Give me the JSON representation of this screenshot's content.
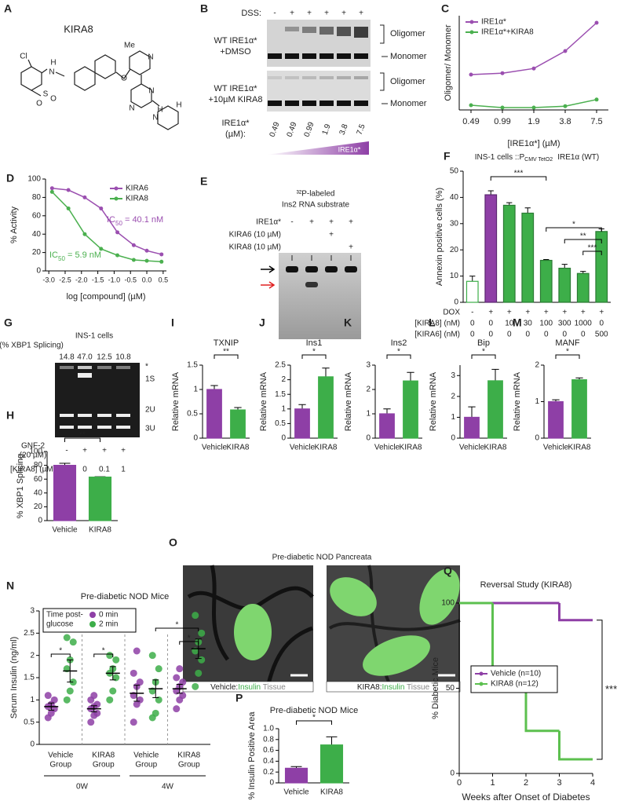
{
  "panel_a": {
    "label": "A",
    "title": "KIRA8",
    "atoms": [
      "Cl",
      "H",
      "N",
      "S",
      "O",
      "O",
      "Me",
      "O",
      "N",
      "N",
      "N",
      "H",
      "N",
      "H"
    ]
  },
  "panel_b": {
    "label": "B",
    "dss_label": "DSS:",
    "dss": [
      "-",
      "+",
      "+",
      "+",
      "+",
      "+"
    ],
    "top_condition": [
      "WT IRE1α*",
      "+DMSO"
    ],
    "bottom_condition": [
      "WT IRE1α*",
      "+10µM KIRA8"
    ],
    "oligomer": "Oligomer",
    "monomer": "Monomer",
    "conc_label": [
      "IRE1α*",
      "(µM):"
    ],
    "concentrations": [
      "0.49",
      "0.49",
      "0.99",
      "1.9",
      "3.8",
      "7.5"
    ],
    "gradient_label": "IRE1α*"
  },
  "panel_e": {
    "label": "E",
    "title": [
      "³²P-labeled",
      "Ins2 RNA substrate"
    ],
    "rows": [
      {
        "label": "IRE1α*",
        "signs": [
          "-",
          "+",
          "+",
          "+"
        ]
      },
      {
        "label": "KIRA6 (10 µM)",
        "signs": [
          null,
          null,
          "+",
          null
        ]
      },
      {
        "label": "KIRA8 (10 µM)",
        "signs": [
          null,
          null,
          null,
          "+"
        ]
      }
    ]
  },
  "panel_g": {
    "label": "G",
    "splicing_label": "(% XBP1 Splicing)",
    "cell_label": "INS-1 cells",
    "splicing": [
      "14.8",
      "47.0",
      "12.5",
      "10.8"
    ],
    "bands": [
      "*",
      "1S",
      "2U",
      "3U"
    ],
    "rows": [
      {
        "label": [
          "GNF-2",
          "(20 µM)"
        ],
        "values": [
          "-",
          "+",
          "+",
          "+"
        ]
      },
      {
        "label": [
          "[KIRA8] (µM)"
        ],
        "values": [
          "0",
          "0",
          "0.1",
          "1"
        ]
      }
    ]
  },
  "panel_o": {
    "label": "O",
    "title": "Pre-diabetic NOD Pancreata",
    "captions": [
      {
        "group": "Vehicle:",
        "stain": "Insulin",
        "tissue": "Tissue"
      },
      {
        "group": "KIRA8:",
        "stain": "Insulin",
        "tissue": "Tissue"
      }
    ]
  },
  "chart_data": [
    {
      "panel": "C",
      "type": "line",
      "categories": [
        "0.49",
        "0.99",
        "1.9",
        "3.8",
        "7.5"
      ],
      "series": [
        {
          "name": "IRE1α*",
          "color": "#9b4fb0",
          "values": [
            0.75,
            0.78,
            0.88,
            1.25,
            1.85
          ]
        },
        {
          "name": "IRE1α*+KIRA8",
          "color": "#4bb04f",
          "values": [
            0.1,
            0.05,
            0.05,
            0.08,
            0.22
          ]
        }
      ],
      "ylim": [
        0,
        2
      ],
      "y_label": "Oligomer/ Monomer",
      "x_label": "[IRE1α*] (µM)",
      "legend": "upper left"
    },
    {
      "panel": "D",
      "type": "scatter",
      "x": [
        -2.9,
        -2.4,
        -1.9,
        -1.4,
        -0.9,
        -0.4,
        0.0,
        0.45
      ],
      "series": [
        {
          "name": "KIRA6",
          "color": "#9b4fb0",
          "values": [
            90,
            88,
            80,
            68,
            42,
            28,
            22,
            18
          ]
        },
        {
          "name": "KIRA8",
          "color": "#4bb04f",
          "values": [
            86,
            68,
            40,
            24,
            17,
            12,
            11,
            10
          ]
        }
      ],
      "xlim": [
        -3.1,
        0.6
      ],
      "xticks": [
        {
          "value": -3,
          "label": "-3.0"
        },
        -2.5,
        {
          "value": -2,
          "label": "-2.0"
        },
        -1.5,
        {
          "value": -1,
          "label": "-1.0"
        },
        -0.5,
        {
          "value": 0,
          "label": "0.0"
        },
        0.5
      ],
      "ylim": [
        0,
        100
      ],
      "yticks": [
        0,
        20,
        40,
        60,
        80,
        100
      ],
      "y_label": "% Activity",
      "x_label": "log [compound] (µM)",
      "ic50_labels": [
        [
          "IC",
          "50",
          " = 40.1 nM"
        ],
        [
          "IC",
          "50",
          " = 5.9 nM"
        ]
      ],
      "legend": "upper right"
    },
    {
      "panel": "F",
      "type": "bar",
      "title": [
        "INS-1 cells ::P",
        "CMV TetO2",
        "IRE1α (WT)"
      ],
      "values": [
        8,
        41,
        37,
        34,
        16,
        13,
        11,
        27
      ],
      "errors": [
        2,
        1.5,
        1,
        2,
        0.3,
        1.5,
        0.8,
        1
      ],
      "colors": [
        "#ffffff",
        "#8e3fa6",
        "#3dae49",
        "#3dae49",
        "#3dae49",
        "#3dae49",
        "#3dae49",
        "#3dae49"
      ],
      "edge_colors": [
        "#3dae49",
        "#5a2670",
        "#2a7a33",
        "#2a7a33",
        "#2a7a33",
        "#2a7a33",
        "#2a7a33",
        "#2a7a33"
      ],
      "ylim": [
        0,
        50
      ],
      "yticks": [
        0,
        10,
        20,
        30,
        40,
        50
      ],
      "y_label": "Annexin positive cells (%)",
      "conditions": [
        {
          "label": "DOX",
          "values": [
            "-",
            "+",
            "+",
            "+",
            "+",
            "+",
            "+",
            "+"
          ]
        },
        {
          "label": "[KIRA8] (nM)",
          "values": [
            "0",
            "0",
            "10",
            "30",
            "100",
            "300",
            "1000",
            "0"
          ]
        },
        {
          "label": "[KIRA6] (nM)",
          "values": [
            "0",
            "0",
            "0",
            "0",
            "0",
            "0",
            "0",
            "500"
          ]
        }
      ],
      "significance": [
        "***",
        "*",
        "**",
        "***"
      ]
    },
    {
      "panel": "H",
      "type": "bar",
      "categories": [
        "Vehicle",
        "KIRA8"
      ],
      "values": [
        80,
        63
      ],
      "errors": [
        3,
        0.5
      ],
      "colors": [
        "#8e3fa6",
        "#3dae49"
      ],
      "ylim": [
        0,
        100
      ],
      "yticks": [
        0,
        20,
        40,
        60,
        80,
        100
      ],
      "y_label": "% XBP1 Splicing",
      "significance": [
        "**"
      ]
    },
    {
      "panel": "I",
      "type": "bar",
      "title": "TXNIP",
      "categories": [
        "Vehicle",
        "KIRA8"
      ],
      "values": [
        1.0,
        0.58
      ],
      "errors": [
        0.08,
        0.05
      ],
      "colors": [
        "#8e3fa6",
        "#3dae49"
      ],
      "ylim": [
        0,
        1.5
      ],
      "yticks": [
        0,
        0.5,
        1,
        1.5
      ],
      "y_label": "Relative mRNA",
      "significance": [
        "**"
      ]
    },
    {
      "panel": "J",
      "type": "bar",
      "title": "Ins1",
      "categories": [
        "Vehicle",
        "KIRA8"
      ],
      "values": [
        1.0,
        2.1
      ],
      "errors": [
        0.15,
        0.3
      ],
      "colors": [
        "#8e3fa6",
        "#3dae49"
      ],
      "ylim": [
        0,
        2.5
      ],
      "yticks": [
        0,
        0.5,
        1,
        1.5,
        2,
        2.5
      ],
      "y_label": "Relative mRNA",
      "significance": [
        "*"
      ]
    },
    {
      "panel": "K",
      "type": "bar",
      "title": "Ins2",
      "categories": [
        "Vehicle",
        "KIRA8"
      ],
      "values": [
        1.0,
        2.35
      ],
      "errors": [
        0.2,
        0.35
      ],
      "colors": [
        "#8e3fa6",
        "#3dae49"
      ],
      "ylim": [
        0,
        3
      ],
      "yticks": [
        0,
        1,
        2,
        3
      ],
      "y_label": "Relative mRNA",
      "significance": [
        "*"
      ]
    },
    {
      "panel": "L",
      "type": "bar",
      "title": "Bip",
      "categories": [
        "Vehicle",
        "KIRA8"
      ],
      "values": [
        1.0,
        2.75
      ],
      "errors": [
        0.5,
        0.55
      ],
      "colors": [
        "#8e3fa6",
        "#3dae49"
      ],
      "ylim": [
        0,
        3.5
      ],
      "yticks": [
        0,
        1,
        2,
        3
      ],
      "y_label": "Relative mRNA",
      "significance": [
        "*"
      ]
    },
    {
      "panel": "M",
      "type": "bar",
      "title": "MANF",
      "categories": [
        "Vehicle",
        "KIRA8"
      ],
      "values": [
        1.0,
        1.6
      ],
      "errors": [
        0.05,
        0.05
      ],
      "colors": [
        "#8e3fa6",
        "#3dae49"
      ],
      "ylim": [
        0,
        2
      ],
      "yticks": [
        0,
        1,
        2
      ],
      "y_label": "Relative mRNA",
      "significance": [
        "*"
      ]
    },
    {
      "panel": "N",
      "type": "dot",
      "title": "Pre-diabetic NOD Mice",
      "categories": [
        [
          "Vehicle",
          "Group"
        ],
        [
          "KIRA8",
          "Group"
        ],
        [
          "Vehicle",
          "Group"
        ],
        [
          "KIRA8",
          "Group"
        ]
      ],
      "periods": [
        "0W",
        "4W"
      ],
      "legend_title": [
        "Time post-",
        "glucose"
      ],
      "series": [
        {
          "name": "0 min",
          "color": "#8e3fa6",
          "values": [
            [
              0.6,
              0.7,
              0.8,
              0.85,
              0.9,
              1.0,
              1.1
            ],
            [
              0.5,
              0.65,
              0.7,
              0.8,
              0.85,
              0.9,
              1.0,
              1.1
            ],
            [
              0.5,
              0.9,
              1.0,
              1.1,
              1.3,
              1.4,
              1.6,
              2.1
            ],
            [
              0.8,
              1.0,
              1.1,
              1.2,
              1.3,
              1.4,
              1.5,
              1.7
            ]
          ],
          "means": [
            0.85,
            0.8,
            1.15,
            1.25
          ],
          "errors": [
            0.08,
            0.07,
            0.18,
            0.1
          ]
        },
        {
          "name": "2 min",
          "color": "#3dae49",
          "values": [
            [
              1.0,
              1.2,
              1.4,
              1.7,
              1.9,
              2.3,
              2.4
            ],
            [
              1.0,
              1.2,
              1.5,
              1.6,
              1.7,
              1.9,
              2.0
            ],
            [
              0.6,
              0.7,
              1.0,
              1.2,
              1.4,
              1.7,
              2.0
            ],
            [
              1.3,
              1.6,
              1.9,
              2.1,
              2.3,
              2.5,
              2.9
            ]
          ],
          "means": [
            1.65,
            1.6,
            1.25,
            2.15
          ],
          "errors": [
            0.25,
            0.15,
            0.2,
            0.22
          ]
        }
      ],
      "ylim": [
        0,
        3
      ],
      "yticks": [
        0,
        0.5,
        1,
        1.5,
        2,
        2.5,
        3
      ],
      "y_label": "Serum Insulin (ng/ml)",
      "significance": [
        "*",
        "*",
        "*",
        "*"
      ]
    },
    {
      "panel": "P",
      "type": "bar",
      "title": "Pre-diabetic NOD Mice",
      "categories": [
        "Vehicle",
        "KIRA8"
      ],
      "values": [
        0.27,
        0.7
      ],
      "errors": [
        0.03,
        0.15
      ],
      "colors": [
        "#8e3fa6",
        "#3dae49"
      ],
      "ylim": [
        0,
        1
      ],
      "yticks": [
        0,
        0.2,
        0.4,
        0.6,
        0.8,
        {
          "value": 1,
          "label": "1.0"
        }
      ],
      "y_label": "% Insulin Positive Area",
      "significance": [
        "*"
      ]
    },
    {
      "panel": "Q",
      "type": "step",
      "title": "Reversal Study (KIRA8)",
      "x": [
        0,
        1,
        2,
        3,
        4
      ],
      "series": [
        {
          "name": "Vehicle (n=10)",
          "color": "#8e3fa6",
          "values": [
            100,
            100,
            100,
            90,
            90
          ]
        },
        {
          "name": "KIRA8 (n=12)",
          "color": "#5cc04f",
          "values": [
            100,
            50,
            25,
            8.3,
            8.3
          ]
        }
      ],
      "xlim": [
        0,
        4
      ],
      "xticks": [
        0,
        1,
        2,
        3,
        4
      ],
      "ylim": [
        0,
        100
      ],
      "yticks": [
        0,
        50,
        100
      ],
      "y_label": "% Diabetic Mice",
      "x_label": "Weeks after Onset of Diabetes",
      "legend": "center",
      "significance": [
        "***"
      ]
    }
  ]
}
